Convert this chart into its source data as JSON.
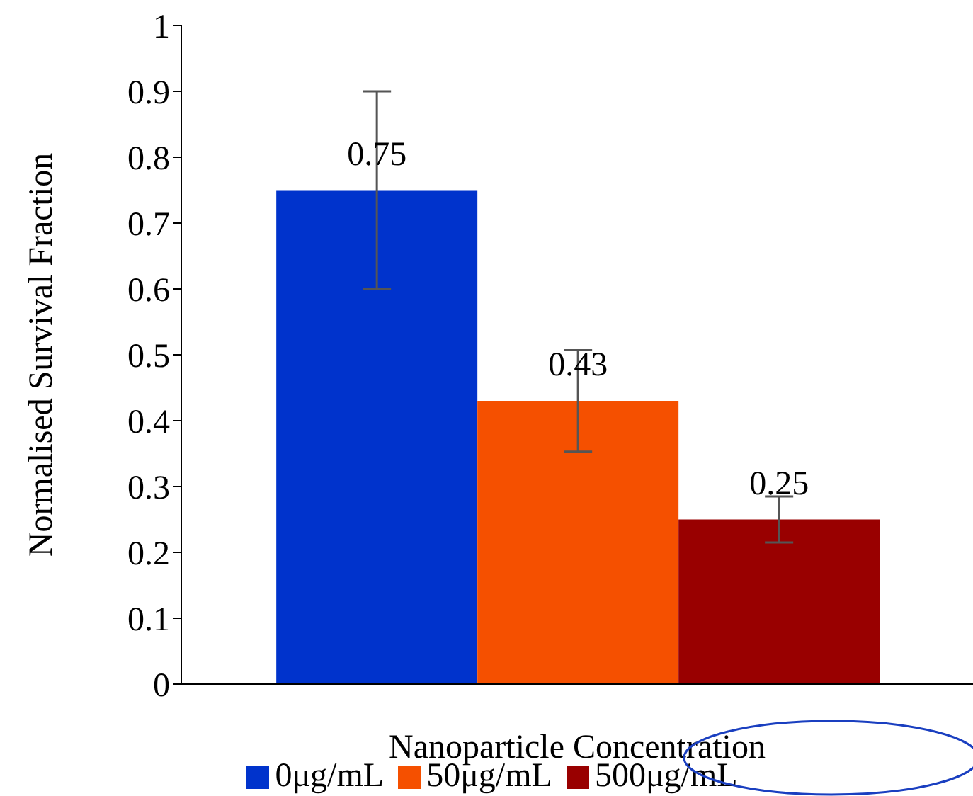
{
  "chart_data": {
    "type": "bar",
    "xlabel": "Nanoparticle Concentration",
    "ylabel": "Normalised Survival Fraction",
    "categories": [
      null
    ],
    "series": [
      {
        "name": "0μg/mL",
        "color": "#0033cc",
        "values": [
          0.75
        ],
        "errors": [
          0.15
        ]
      },
      {
        "name": "50μg/mL",
        "color": "#f55000",
        "values": [
          0.43
        ],
        "errors": [
          0.077
        ]
      },
      {
        "name": "500μg/mL",
        "color": "#990000",
        "values": [
          0.25
        ],
        "errors": [
          0.035
        ]
      }
    ],
    "ylim": [
      0,
      1
    ],
    "yticks": [
      0,
      0.1,
      0.2,
      0.3,
      0.4,
      0.5,
      0.6,
      0.7,
      0.8,
      0.9,
      1
    ],
    "grid": false,
    "legend": "bottom",
    "data_labels": true
  }
}
